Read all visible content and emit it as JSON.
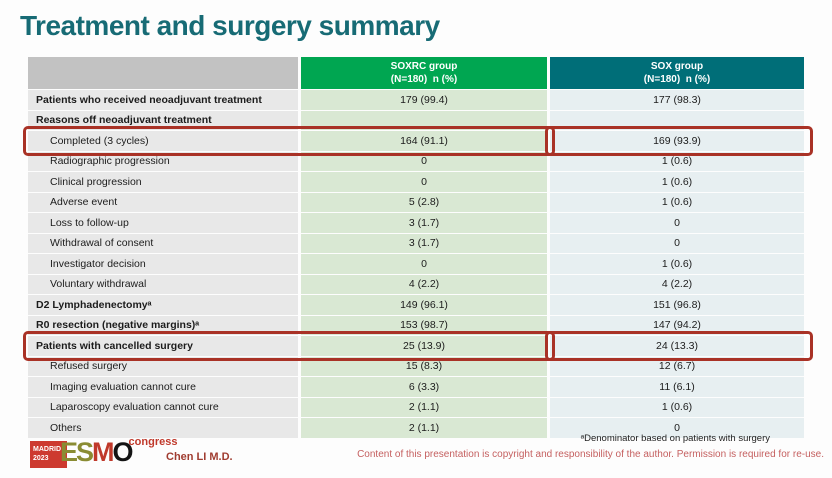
{
  "slide": {
    "title": "Treatment and surgery summary",
    "footnote": "ᵃDenominator based on patients with surgery",
    "author": "Chen LI M.D.",
    "copyright": "Content of this presentation is copyright and responsibility of the author.  Permission is required for re-use."
  },
  "logo": {
    "city": "MADRID",
    "year": "2023",
    "letters": [
      "E",
      "S",
      "M",
      "O"
    ],
    "congress": "congress"
  },
  "table": {
    "columns": [
      {
        "group": "",
        "n": ""
      },
      {
        "group": "SOXRC group",
        "n": "(N=180)  n (%)"
      },
      {
        "group": "SOX group",
        "n": "(N=180)  n (%)"
      }
    ],
    "rows": [
      {
        "label": "Patients who received neoadjuvant treatment",
        "bold": true,
        "indent": false,
        "soxrc": "179 (99.4)",
        "sox": "177 (98.3)",
        "highlight": false
      },
      {
        "label": "Reasons off neoadjuvant treatment",
        "bold": true,
        "indent": false,
        "soxrc": "",
        "sox": "",
        "highlight": false
      },
      {
        "label": "Completed (3 cycles)",
        "bold": false,
        "indent": true,
        "soxrc": "164 (91.1)",
        "sox": "169 (93.9)",
        "highlight": true
      },
      {
        "label": "Radiographic progression",
        "bold": false,
        "indent": true,
        "soxrc": "0",
        "sox": "1 (0.6)",
        "highlight": false
      },
      {
        "label": "Clinical progression",
        "bold": false,
        "indent": true,
        "soxrc": "0",
        "sox": "1 (0.6)",
        "highlight": false
      },
      {
        "label": "Adverse event",
        "bold": false,
        "indent": true,
        "soxrc": "5 (2.8)",
        "sox": "1 (0.6)",
        "highlight": false
      },
      {
        "label": "Loss to follow-up",
        "bold": false,
        "indent": true,
        "soxrc": "3 (1.7)",
        "sox": "0",
        "highlight": false
      },
      {
        "label": "Withdrawal of consent",
        "bold": false,
        "indent": true,
        "soxrc": "3 (1.7)",
        "sox": "0",
        "highlight": false
      },
      {
        "label": "Investigator decision",
        "bold": false,
        "indent": true,
        "soxrc": "0",
        "sox": "1 (0.6)",
        "highlight": false
      },
      {
        "label": "Voluntary withdrawal",
        "bold": false,
        "indent": true,
        "soxrc": "4 (2.2)",
        "sox": "4 (2.2)",
        "highlight": false
      },
      {
        "label": "D2 Lymphadenectomyᵃ",
        "bold": true,
        "indent": false,
        "soxrc": "149 (96.1)",
        "sox": "151 (96.8)",
        "highlight": false
      },
      {
        "label": "R0 resection (negative margins)ᵃ",
        "bold": true,
        "indent": false,
        "soxrc": "153 (98.7)",
        "sox": "147 (94.2)",
        "highlight": false
      },
      {
        "label": "Patients with cancelled surgery",
        "bold": true,
        "indent": false,
        "soxrc": "25 (13.9)",
        "sox": "24 (13.3)",
        "highlight": true
      },
      {
        "label": "Refused surgery",
        "bold": false,
        "indent": true,
        "soxrc": "15 (8.3)",
        "sox": "12 (6.7)",
        "highlight": false
      },
      {
        "label": "Imaging evaluation cannot cure",
        "bold": false,
        "indent": true,
        "soxrc": "6 (3.3)",
        "sox": "11 (6.1)",
        "highlight": false
      },
      {
        "label": "Laparoscopy evaluation cannot cure",
        "bold": false,
        "indent": true,
        "soxrc": "2 (1.1)",
        "sox": "1 (0.6)",
        "highlight": false
      },
      {
        "label": "Others",
        "bold": false,
        "indent": true,
        "soxrc": "2 (1.1)",
        "sox": "0",
        "highlight": false
      }
    ]
  },
  "colors": {
    "title_teal": "#176b75",
    "header_green": "#00a651",
    "header_teal": "#006e78",
    "corner_grey": "#c2c2c2",
    "label_cell": "#e8e8e8",
    "soxrc_cell": "#d9e8d3",
    "sox_cell": "#e7eff1",
    "highlight_red": "#a93226",
    "logo_red": "#cd3a30",
    "logo_olive": "#8a8c33",
    "author_red": "#a03c30",
    "copyright_pink": "#c56060"
  }
}
